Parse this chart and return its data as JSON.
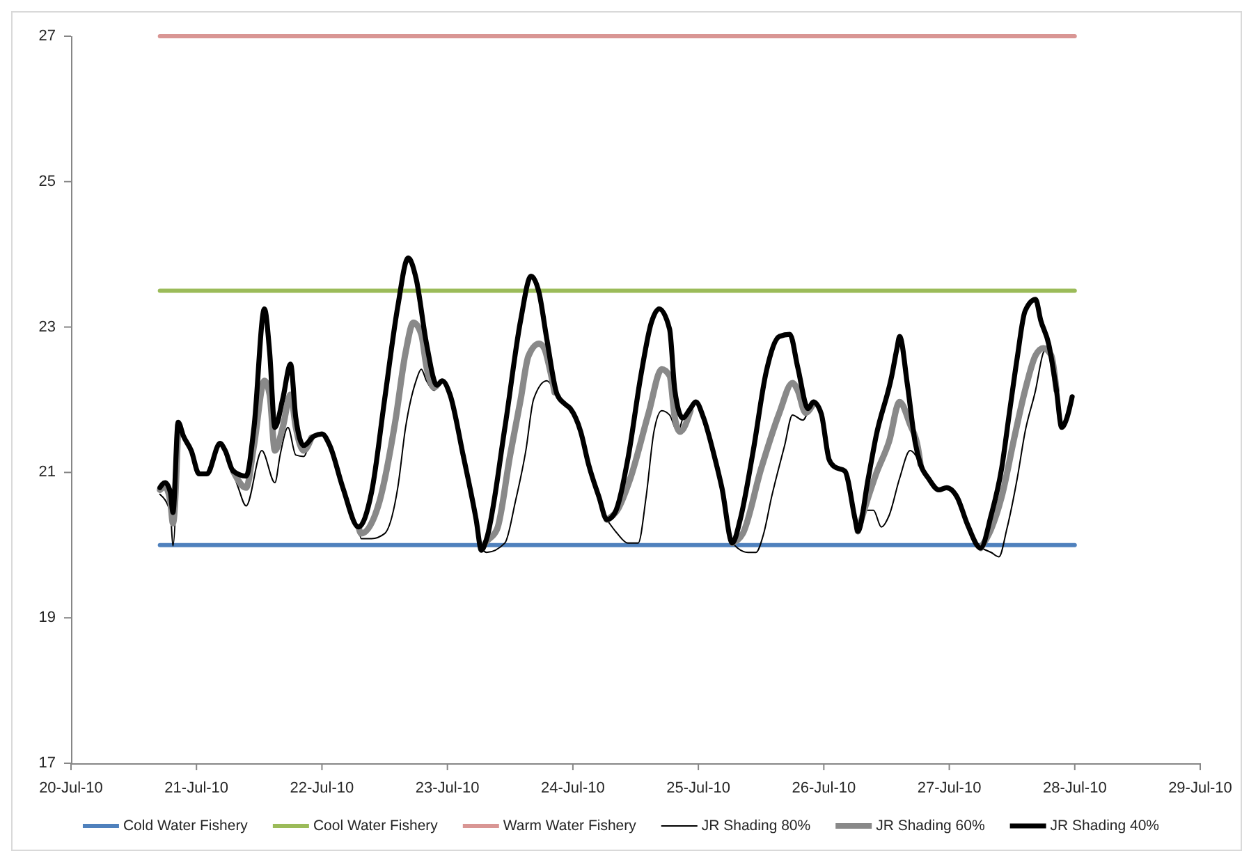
{
  "chart_data": {
    "type": "line",
    "xlim": [
      "--07-20",
      "--07-29"
    ],
    "xticks": [
      {
        "value": "--07-20",
        "label": "20-Jul-10"
      },
      {
        "value": "--07-21",
        "label": "21-Jul-10"
      },
      {
        "value": "--07-22",
        "label": "22-Jul-10"
      },
      {
        "value": "--07-23",
        "label": "23-Jul-10"
      },
      {
        "value": "--07-24",
        "label": "24-Jul-10"
      },
      {
        "value": "--07-25",
        "label": "25-Jul-10"
      },
      {
        "value": "--07-26",
        "label": "26-Jul-10"
      },
      {
        "value": "--07-27",
        "label": "27-Jul-10"
      },
      {
        "value": "--07-28",
        "label": "28-Jul-10"
      },
      {
        "value": "--07-29",
        "label": "29-Jul-10"
      }
    ],
    "ylim": [
      17,
      27
    ],
    "yticks": [
      17,
      19,
      21,
      23,
      25,
      27
    ],
    "legend": "bottom",
    "series": [
      {
        "name": "Cold Water Fishery",
        "color": "#4f81bd",
        "x": [
          "--07-20T17:00",
          "--07-28T00:00"
        ],
        "values": [
          20,
          20
        ]
      },
      {
        "name": "Cool Water Fishery",
        "color": "#9bbb59",
        "x": [
          "--07-20T17:00",
          "--07-28T00:00"
        ],
        "values": [
          23.5,
          23.5
        ]
      },
      {
        "name": "Warm Water Fishery",
        "color": "#d99694",
        "x": [
          "--07-20T17:00",
          "--07-28T00:00"
        ],
        "values": [
          27,
          27
        ]
      },
      {
        "name": "JR Shading 80%",
        "color": "#000000",
        "x": [
          "--07-20T17:00",
          "--07-20T19:00",
          "--07-20T19:30",
          "--07-20T20:30",
          "--07-21T00:00",
          "--07-21T07:00",
          "--07-21T08:00",
          "--07-21T09:30",
          "--07-21T12:30",
          "--07-21T15:00",
          "--07-21T16:00",
          "--07-21T17:30",
          "--07-21T19:00",
          "--07-21T20:30",
          "--07-21T21:30",
          "--07-22T03:00",
          "--07-22T07:00",
          "--07-22T07:30",
          "--07-22T09:30",
          "--07-22T12:00",
          "--07-22T14:30",
          "--07-22T16:00",
          "--07-22T18:00",
          "--07-22T19:00",
          "--07-22T20:00",
          "--07-22T21:30",
          "--07-22T22:00",
          "--07-23T02:00",
          "--07-23T06:30",
          "--07-23T07:30",
          "--07-23T11:00",
          "--07-23T13:00",
          "--07-23T15:00",
          "--07-23T16:30",
          "--07-23T19:00",
          "--07-23T20:30",
          "--07-23T21:00",
          "--07-24T02:00",
          "--07-24T06:30",
          "--07-24T08:30",
          "--07-24T10:30",
          "--07-24T12:30",
          "--07-24T14:00",
          "--07-24T15:30",
          "--07-24T17:00",
          "--07-24T18:30",
          "--07-24T20:00",
          "--07-24T21:00",
          "--07-25T03:00",
          "--07-25T06:30",
          "--07-25T07:30",
          "--07-25T09:30",
          "--07-25T11:00",
          "--07-25T12:30",
          "--07-25T14:00",
          "--07-25T16:30",
          "--07-25T18:00",
          "--07-25T20:00",
          "--07-25T21:00",
          "--07-26T03:00",
          "--07-26T06:30",
          "--07-26T07:30",
          "--07-26T09:30",
          "--07-26T11:00",
          "--07-26T12:30",
          "--07-26T14:30",
          "--07-26T16:30",
          "--07-26T18:30",
          "--07-27T02:00",
          "--07-27T06:00",
          "--07-27T08:00",
          "--07-27T09:30",
          "--07-27T11:00",
          "--07-27T13:00",
          "--07-27T14:30",
          "--07-27T16:30",
          "--07-27T18:00",
          "--07-27T18:30"
        ],
        "values": [
          20.7,
          20.45,
          19.99,
          21.6,
          null,
          21.0,
          20.79,
          20.54,
          21.3,
          20.86,
          21.24,
          21.62,
          21.24,
          21.22,
          21.4,
          null,
          20.25,
          20.09,
          20.09,
          20.16,
          20.79,
          21.62,
          22.26,
          22.42,
          22.26,
          22.13,
          22.2,
          null,
          19.95,
          19.9,
          20.03,
          20.6,
          21.3,
          22.01,
          22.26,
          22.13,
          22.07,
          null,
          20.35,
          20.16,
          20.03,
          20.03,
          20.66,
          21.56,
          21.85,
          21.79,
          21.56,
          21.75,
          null,
          20.03,
          19.96,
          19.9,
          19.9,
          20.16,
          20.66,
          21.37,
          21.79,
          21.72,
          21.85,
          null,
          20.19,
          20.48,
          20.48,
          20.25,
          20.41,
          20.92,
          21.3,
          21.11,
          null,
          19.96,
          19.9,
          19.84,
          20.22,
          20.92,
          21.56,
          22.13,
          22.65,
          22.7
        ]
      },
      {
        "name": "JR Shading 60%",
        "color": "#898989",
        "x": [
          "--07-20T17:00",
          "--07-20T18:00",
          "--07-20T19:00",
          "--07-20T19:30",
          "--07-20T20:30",
          "--07-21T00:00",
          "--07-21T07:00",
          "--07-21T09:30",
          "--07-21T11:00",
          "--07-21T13:00",
          "--07-21T14:00",
          "--07-21T15:00",
          "--07-21T16:30",
          "--07-21T18:00",
          "--07-21T19:00",
          "--07-21T20:30",
          "--07-21T22:00",
          "--07-22T03:00",
          "--07-22T07:00",
          "--07-22T07:30",
          "--07-22T11:00",
          "--07-22T14:00",
          "--07-22T16:00",
          "--07-22T17:30",
          "--07-22T19:00",
          "--07-22T20:00",
          "--07-22T21:30",
          "--07-22T22:00",
          "--07-23T02:00",
          "--07-23T06:30",
          "--07-23T07:30",
          "--07-23T09:30",
          "--07-23T12:00",
          "--07-23T14:00",
          "--07-23T15:30",
          "--07-23T17:30",
          "--07-23T18:30",
          "--07-23T19:30",
          "--07-23T20:30",
          "--07-24T02:00",
          "--07-24T06:30",
          "--07-24T08:30",
          "--07-24T11:00",
          "--07-24T14:30",
          "--07-24T17:00",
          "--07-24T18:30",
          "--07-24T19:30",
          "--07-24T20:30",
          "--07-24T22:30",
          "--07-25T03:00",
          "--07-25T06:30",
          "--07-25T08:30",
          "--07-25T12:00",
          "--07-25T15:30",
          "--07-25T18:00",
          "--07-25T19:00",
          "--07-25T20:30",
          "--07-25T22:00",
          "--07-26T03:00",
          "--07-26T06:30",
          "--07-26T08:30",
          "--07-26T10:00",
          "--07-26T12:30",
          "--07-26T14:30",
          "--07-26T16:30",
          "--07-26T18:00",
          "--07-26T18:30",
          "--07-27T02:00",
          "--07-27T06:00",
          "--07-27T08:00",
          "--07-27T10:00",
          "--07-27T12:30",
          "--07-27T14:30",
          "--07-27T16:30",
          "--07-27T18:00",
          "--07-27T19:30",
          "--07-27T20:30"
        ],
        "values": [
          20.76,
          20.8,
          20.6,
          20.3,
          21.65,
          null,
          21.02,
          20.79,
          21.37,
          22.26,
          22.07,
          21.3,
          21.62,
          22.07,
          21.62,
          21.3,
          21.48,
          null,
          20.25,
          20.16,
          20.6,
          21.69,
          22.65,
          23.06,
          22.9,
          22.45,
          22.17,
          22.2,
          null,
          19.95,
          20.05,
          20.22,
          21.24,
          22.0,
          22.6,
          22.77,
          22.71,
          22.45,
          22.1,
          null,
          20.35,
          20.48,
          20.92,
          21.82,
          22.42,
          22.33,
          21.75,
          21.56,
          21.85,
          null,
          20.03,
          20.16,
          21.05,
          21.82,
          22.23,
          22.13,
          21.82,
          21.95,
          null,
          20.19,
          20.66,
          20.98,
          21.43,
          21.97,
          21.66,
          21.34,
          21.11,
          null,
          19.96,
          20.22,
          20.66,
          21.5,
          22.13,
          22.61,
          22.71,
          22.61,
          22.13
        ]
      },
      {
        "name": "JR Shading 40%",
        "color": "#000000",
        "x": [
          "--07-20T17:00",
          "--07-20T18:00",
          "--07-20T19:00",
          "--07-20T19:30",
          "--07-20T20:30",
          "--07-20T21:30",
          "--07-20T23:00",
          "--07-21T00:30",
          "--07-21T02:00",
          "--07-21T04:30",
          "--07-21T05:30",
          "--07-21T07:00",
          "--07-21T09:30",
          "--07-21T11:00",
          "--07-21T13:00",
          "--07-21T14:00",
          "--07-21T15:00",
          "--07-21T16:30",
          "--07-21T18:00",
          "--07-21T19:00",
          "--07-21T20:30",
          "--07-21T22:30",
          "--07-22T00:00",
          "--07-22T01:30",
          "--07-22T04:00",
          "--07-22T07:00",
          "--07-22T09:30",
          "--07-22T12:00",
          "--07-22T14:30",
          "--07-22T16:30",
          "--07-22T18:00",
          "--07-22T20:00",
          "--07-22T22:00",
          "--07-22T23:00",
          "--07-23T00:30",
          "--07-23T03:00",
          "--07-23T05:30",
          "--07-23T06:30",
          "--07-23T07:30",
          "--07-23T11:00",
          "--07-23T14:00",
          "--07-23T16:00",
          "--07-23T17:30",
          "--07-23T19:00",
          "--07-23T21:00",
          "--07-23T22:30",
          "--07-23T23:30",
          "--07-24T01:30",
          "--07-24T03:00",
          "--07-24T05:00",
          "--07-24T06:30",
          "--07-24T08:00",
          "--07-24T10:30",
          "--07-24T13:00",
          "--07-24T15:00",
          "--07-24T16:30",
          "--07-24T18:30",
          "--07-24T19:30",
          "--07-24T21:00",
          "--07-24T22:30",
          "--07-24T23:30",
          "--07-25T01:00",
          "--07-25T03:00",
          "--07-25T04:30",
          "--07-25T06:30",
          "--07-25T08:00",
          "--07-25T10:30",
          "--07-25T13:00",
          "--07-25T15:30",
          "--07-25T17:30",
          "--07-25T19:00",
          "--07-25T21:00",
          "--07-25T22:00",
          "--07-25T23:30",
          "--07-26T01:00",
          "--07-26T02:00",
          "--07-26T04:00",
          "--07-26T06:00",
          "--07-26T06:30",
          "--07-26T08:30",
          "--07-26T10:00",
          "--07-26T13:00",
          "--07-26T14:00",
          "--07-26T14:30",
          "--07-26T16:00",
          "--07-26T17:30",
          "--07-26T18:30",
          "--07-26T20:00",
          "--07-26T22:00",
          "--07-26T23:30",
          "--07-27T01:30",
          "--07-27T03:30",
          "--07-27T06:00",
          "--07-27T08:00",
          "--07-27T10:00",
          "--07-27T11:30",
          "--07-27T13:00",
          "--07-27T14:30",
          "--07-27T16:30",
          "--07-27T17:30",
          "--07-27T19:00",
          "--07-27T20:30",
          "--07-27T21:30",
          "--07-27T22:30",
          "--07-27T23:30"
        ],
        "values": [
          20.79,
          20.86,
          20.73,
          20.45,
          21.69,
          21.5,
          21.3,
          20.98,
          20.98,
          21.4,
          21.3,
          21.02,
          20.95,
          21.62,
          23.25,
          22.65,
          21.62,
          22.01,
          22.49,
          21.75,
          21.37,
          21.5,
          21.53,
          21.37,
          20.79,
          20.25,
          20.73,
          22.01,
          23.28,
          23.95,
          23.67,
          22.77,
          22.2,
          22.26,
          22.07,
          21.24,
          20.35,
          19.93,
          20.09,
          21.62,
          23.09,
          23.7,
          23.48,
          22.84,
          22.07,
          21.94,
          21.88,
          21.56,
          21.11,
          20.66,
          20.35,
          20.44,
          21.18,
          22.33,
          23.06,
          23.25,
          22.97,
          22.13,
          21.75,
          21.88,
          21.97,
          21.75,
          21.24,
          20.79,
          20.03,
          20.35,
          21.3,
          22.39,
          22.87,
          22.9,
          22.45,
          21.88,
          21.97,
          21.81,
          21.18,
          21.08,
          21.02,
          20.35,
          20.19,
          20.92,
          21.5,
          22.33,
          22.71,
          22.87,
          22.2,
          21.4,
          21.11,
          20.92,
          20.76,
          20.79,
          20.66,
          20.28,
          19.96,
          20.41,
          21.05,
          21.82,
          22.58,
          23.22,
          23.38,
          23.09,
          22.77,
          22.13,
          21.62,
          21.75,
          22.04
        ]
      }
    ]
  }
}
